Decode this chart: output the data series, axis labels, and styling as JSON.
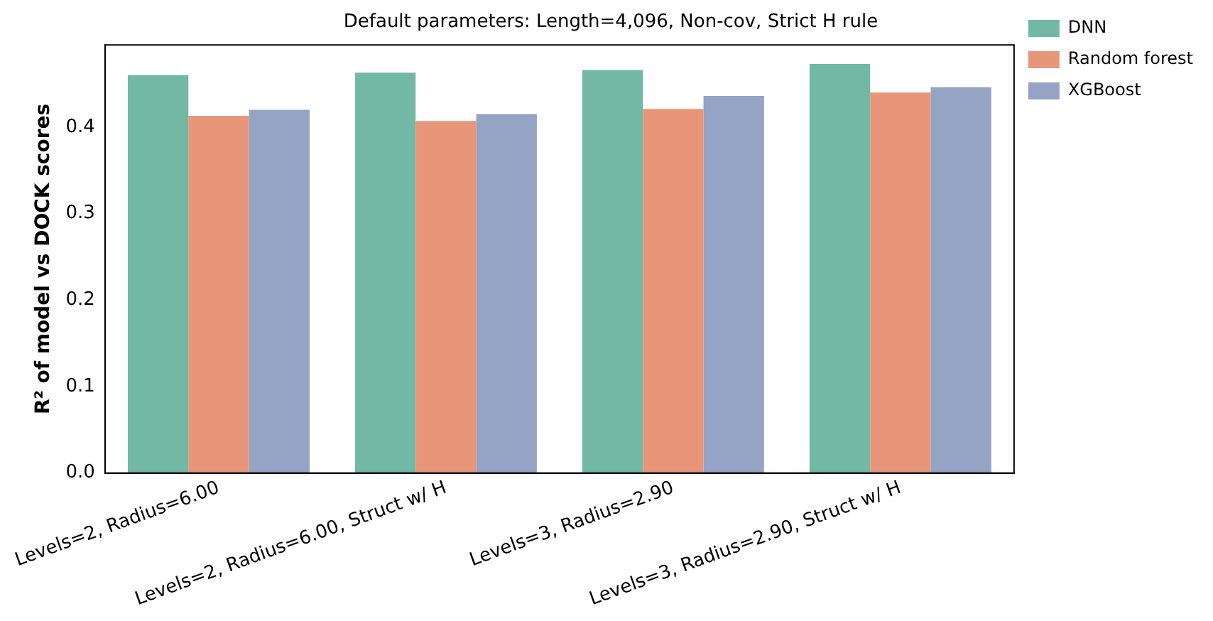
{
  "chart_data": {
    "type": "bar",
    "title": "Default parameters: Length=4,096, Non-cov, Strict H rule",
    "ylabel": "R² of model vs DOCK scores",
    "categories": [
      "Levels=2, Radius=6.00",
      "Levels=2, Radius=6.00, Struct w/ H",
      "Levels=3, Radius=2.90",
      "Levels=3, Radius=2.90, Struct w/ H"
    ],
    "series": [
      {
        "name": "DNN",
        "color": "#73b8a4",
        "values": [
          0.46,
          0.463,
          0.466,
          0.473
        ]
      },
      {
        "name": "Random forest",
        "color": "#e8967a",
        "values": [
          0.413,
          0.407,
          0.421,
          0.44
        ]
      },
      {
        "name": "XGBoost",
        "color": "#95a3c5",
        "values": [
          0.42,
          0.415,
          0.436,
          0.446
        ]
      }
    ],
    "ylim": [
      0,
      0.495
    ],
    "yticks": [
      {
        "value": 0,
        "label": "0.0"
      },
      {
        "value": 0.1,
        "label": "0.1"
      },
      {
        "value": 0.2,
        "label": "0.2"
      },
      {
        "value": 0.3,
        "label": "0.3"
      },
      {
        "value": 0.4,
        "label": "0.4"
      }
    ],
    "grid": false,
    "legend": "top right"
  }
}
